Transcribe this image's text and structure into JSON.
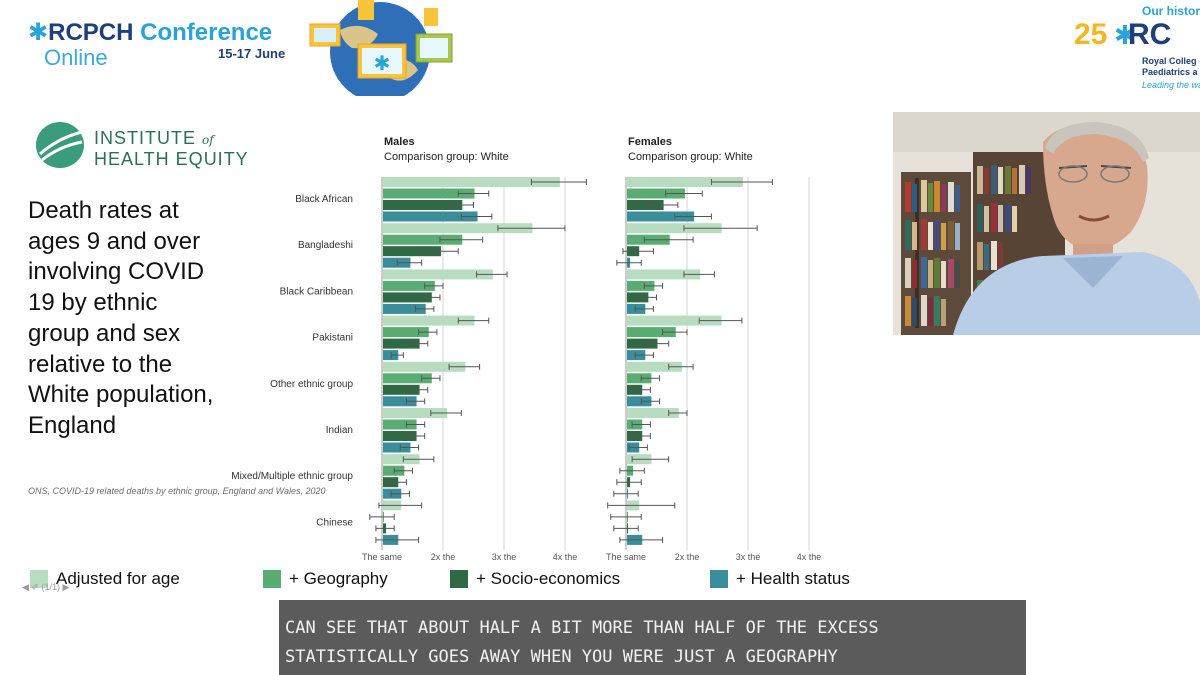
{
  "header": {
    "conference": {
      "title_rc": "RC",
      "title_pch": "PCH",
      "title_conf": " Conference",
      "subtitle": "Online",
      "dates": "15-17 June"
    },
    "rcpch": {
      "history": "Our histor",
      "years": "25",
      "letters": "RC",
      "org_line1": "Royal Colleg",
      "org_line2": "Paediatrics a",
      "tagline": "Leading the wa"
    }
  },
  "slide": {
    "logo_line1": "INSTITUTE",
    "logo_of": "of",
    "logo_line2": "HEALTH EQUITY",
    "title": "Death rates at ages 9 and over involving COVID 19 by ethnic group and sex relative to the White population, England",
    "source": "ONS, COVID-19 related deaths by ethnic group, England and Wales, 2020",
    "nav": "◀ ✐ (1/1) ▶"
  },
  "chart_data": {
    "type": "bar",
    "orientation": "horizontal",
    "categories": [
      "Black African",
      "Bangladeshi",
      "Black Caribbean",
      "Pakistani",
      "Other ethnic group",
      "Indian",
      "Mixed/Multiple ethnic group",
      "Chinese"
    ],
    "x_ticks": [
      "The same",
      "2x the",
      "3x the",
      "4x the"
    ],
    "x_tick_values": [
      1,
      2,
      3,
      4
    ],
    "xlim": [
      1,
      4.2
    ],
    "legend_position": "bottom",
    "series_names": [
      "Adjusted for age",
      "+ Geography",
      "+ Socio-economics",
      "+ Health status"
    ],
    "series_colors": [
      "#b8dcc0",
      "#5aad72",
      "#2f6a45",
      "#3a8d9a"
    ],
    "panels": [
      {
        "title": "Males",
        "subtitle": "Comparison group: White",
        "series": [
          {
            "values": [
              3.9,
              3.45,
              2.8,
              2.5,
              2.35,
              2.05,
              1.6,
              1.3
            ],
            "errors": [
              0.45,
              0.55,
              0.25,
              0.25,
              0.25,
              0.25,
              0.25,
              0.35
            ]
          },
          {
            "values": [
              2.5,
              2.3,
              1.85,
              1.75,
              1.8,
              1.55,
              1.35,
              1.0
            ],
            "errors": [
              0.25,
              0.35,
              0.15,
              0.15,
              0.15,
              0.15,
              0.15,
              0.2
            ]
          },
          {
            "values": [
              2.3,
              1.95,
              1.8,
              1.6,
              1.6,
              1.55,
              1.25,
              1.05
            ],
            "errors": [
              0.2,
              0.3,
              0.15,
              0.15,
              0.15,
              0.15,
              0.15,
              0.15
            ]
          },
          {
            "values": [
              2.55,
              1.45,
              1.7,
              1.25,
              1.55,
              1.45,
              1.3,
              1.25
            ],
            "errors": [
              0.25,
              0.2,
              0.15,
              0.1,
              0.15,
              0.15,
              0.15,
              0.35
            ]
          }
        ]
      },
      {
        "title": "Females",
        "subtitle": "Comparison group: White",
        "series": [
          {
            "values": [
              2.9,
              2.55,
              2.2,
              2.55,
              1.9,
              1.85,
              1.4,
              1.2
            ],
            "errors": [
              0.5,
              0.6,
              0.25,
              0.35,
              0.2,
              0.15,
              0.3,
              0.6
            ]
          },
          {
            "values": [
              1.95,
              1.7,
              1.45,
              1.8,
              1.4,
              1.25,
              1.1,
              1.0
            ],
            "errors": [
              0.3,
              0.4,
              0.15,
              0.2,
              0.15,
              0.15,
              0.2,
              0.25
            ]
          },
          {
            "values": [
              1.6,
              1.2,
              1.35,
              1.5,
              1.25,
              1.25,
              1.05,
              1.0
            ],
            "errors": [
              0.25,
              0.25,
              0.15,
              0.2,
              0.15,
              0.15,
              0.2,
              0.2
            ]
          },
          {
            "values": [
              2.1,
              1.05,
              1.3,
              1.3,
              1.4,
              1.2,
              1.0,
              1.25
            ],
            "errors": [
              0.3,
              0.2,
              0.15,
              0.15,
              0.15,
              0.15,
              0.2,
              0.35
            ]
          }
        ]
      }
    ]
  },
  "captions": {
    "line1": "CAN SEE THAT ABOUT HALF A BIT MORE THAN HALF OF THE EXCESS",
    "line2": "STATISTICALLY GOES AWAY WHEN YOU WERE JUST A GEOGRAPHY"
  }
}
